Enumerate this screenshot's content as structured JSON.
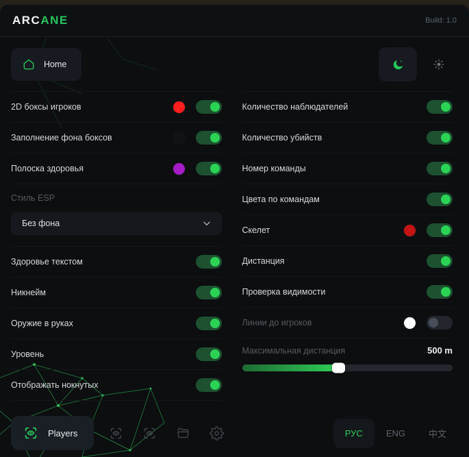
{
  "header": {
    "brand_part1": "ARC",
    "brand_part2": "ANE",
    "build": "Build: 1.0"
  },
  "nav": {
    "home_label": "Home"
  },
  "icons": {
    "home": "home-icon",
    "dark_mode": "moon-icon",
    "light_mode": "sun-icon",
    "players": "eye-scan-icon",
    "tab2": "eye-scan-icon",
    "tab3": "eye-scan-icon",
    "configs": "folder-icon",
    "settings": "gear-icon",
    "dropdown": "chevron-down-icon"
  },
  "colors": {
    "accent": "#24c75a",
    "toggle_on_track": "#1d5130",
    "toggle_on_knob": "#2bd355"
  },
  "left_panel": {
    "rows": [
      {
        "label": "2D боксы игроков",
        "color": "#ff1d1d",
        "on": true
      },
      {
        "label": "Заполнение фона боксов",
        "color": "#101214",
        "on": true
      },
      {
        "label": "Полоска здоровья",
        "color": "#a51cc7",
        "on": true
      }
    ],
    "esp_style": {
      "label": "Стиль ESP",
      "value": "Без фона"
    },
    "toggles": [
      {
        "label": "Здоровье текстом",
        "on": true
      },
      {
        "label": "Никнейм",
        "on": true
      },
      {
        "label": "Оружие в руках",
        "on": true
      },
      {
        "label": "Уровень",
        "on": true
      },
      {
        "label": "Отображать нокнутых",
        "on": true
      }
    ]
  },
  "right_panel": {
    "toggles": [
      {
        "label": "Количество наблюдателей",
        "on": true
      },
      {
        "label": "Количество убийств",
        "on": true
      },
      {
        "label": "Номер команды",
        "on": true
      },
      {
        "label": "Цвета по командам",
        "on": true
      },
      {
        "label": "Скелет",
        "color": "#c41414",
        "on": true
      },
      {
        "label": "Дистанция",
        "on": true
      },
      {
        "label": "Проверка видимости",
        "on": true
      },
      {
        "label": "Линии до игроков",
        "color": "#ffffff",
        "on": false
      }
    ],
    "max_distance": {
      "label": "Максимальная дистанция",
      "value": "500 m",
      "percent": 46
    }
  },
  "footer": {
    "players_label": "Players",
    "languages": [
      {
        "label": "РУС",
        "active": true
      },
      {
        "label": "ENG",
        "active": false
      },
      {
        "label": "中文",
        "active": false
      }
    ]
  }
}
